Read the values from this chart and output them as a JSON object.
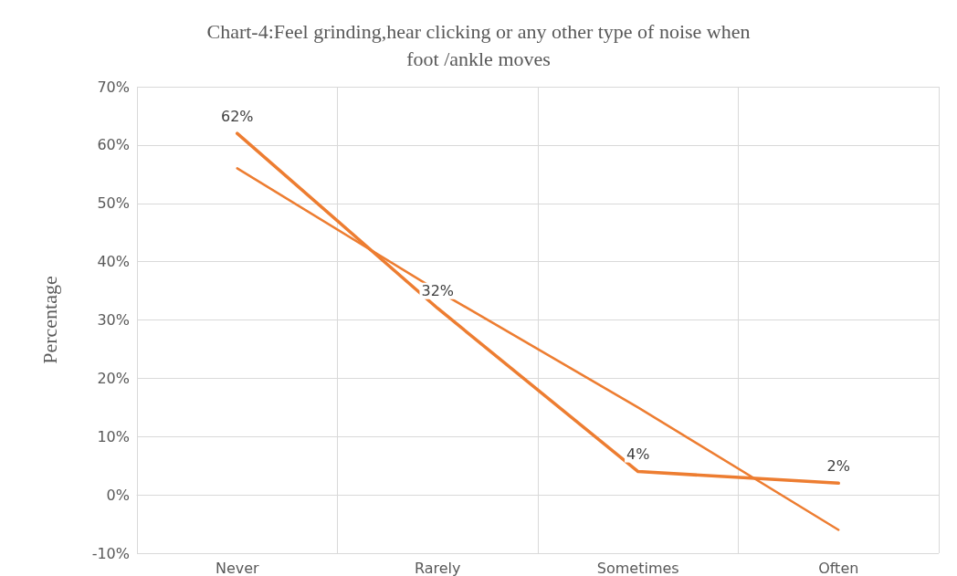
{
  "chart_data": {
    "type": "line",
    "title": "Chart-4:Feel grinding,hear clicking or any other type of noise when\nfoot /ankle moves",
    "ylabel": "Percentage",
    "categories": [
      "Never",
      "Rarely",
      "Sometimes",
      "Often"
    ],
    "series": [
      {
        "color": "#ed7d31",
        "values": [
          62,
          32,
          4,
          2
        ],
        "value_labels": [
          "62%",
          "32%",
          "4%",
          "2%"
        ]
      },
      {
        "type": "line",
        "color": "#ed7d31",
        "x": [
          "Never",
          "Rarely",
          "Sometimes",
          "Often"
        ],
        "values": [
          56,
          35,
          15,
          -6
        ]
      }
    ],
    "ylim": [
      -10,
      70
    ],
    "yticks": [
      {
        "value": -10,
        "label": "-10%"
      },
      {
        "value": 0,
        "label": "0%"
      },
      {
        "value": 10,
        "label": "10%"
      },
      {
        "value": 20,
        "label": "20%"
      },
      {
        "value": 30,
        "label": "30%"
      },
      {
        "value": 40,
        "label": "40%"
      },
      {
        "value": 50,
        "label": "50%"
      },
      {
        "value": 60,
        "label": "60%"
      },
      {
        "value": 70,
        "label": "70%"
      }
    ],
    "grid": true,
    "marker": "none",
    "line_style": "solid"
  }
}
